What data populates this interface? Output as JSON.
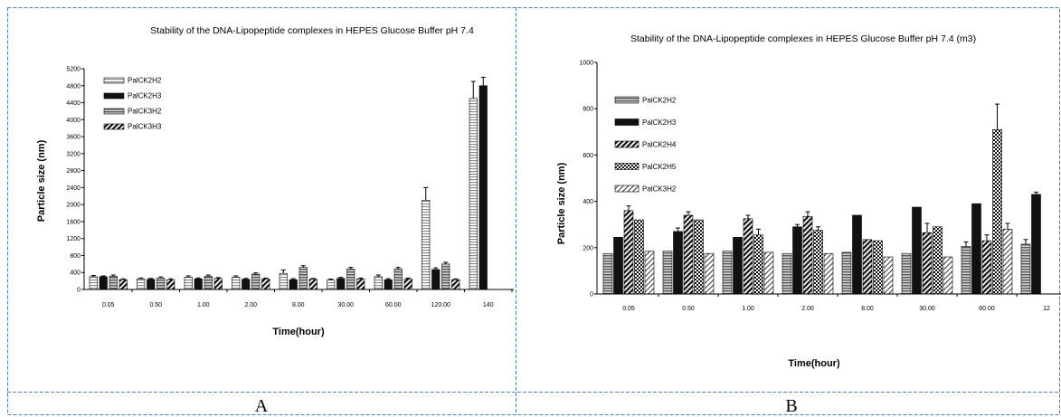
{
  "panel_labels": [
    "A",
    "B"
  ],
  "colors": {
    "border": "#4a7fc4",
    "light_bar": "#e3e3e3",
    "dark_bar": "#111111",
    "mid_bar": "#9a9a9a",
    "error_bar": "#000000"
  },
  "chart_data": [
    {
      "type": "bar",
      "title": "Stability of the DNA-Lipopeptide complexes in HEPES Glucose Buffer pH 7.4",
      "xlabel": "Time(hour)",
      "ylabel": "Particle size (nm)",
      "ylim": [
        0,
        5200
      ],
      "yticks": [
        0,
        400,
        800,
        1200,
        1600,
        2000,
        2400,
        2800,
        3200,
        3600,
        4000,
        4400,
        4800,
        5200
      ],
      "categories": [
        "0.05",
        "0.50",
        "1.00",
        "2.00",
        "8.00",
        "30.00",
        "60.00",
        "120.00",
        "140"
      ],
      "legend_position": "top-left",
      "series": [
        {
          "name": "PalCK2H2",
          "pattern": "hlines-light",
          "values": [
            300,
            250,
            290,
            290,
            380,
            220,
            300,
            2100,
            4500
          ],
          "errors": [
            30,
            20,
            30,
            30,
            80,
            25,
            40,
            300,
            400
          ]
        },
        {
          "name": "PalCK2H3",
          "pattern": "solid-dark",
          "values": [
            300,
            240,
            250,
            240,
            230,
            260,
            230,
            470,
            4800
          ],
          "errors": [
            20,
            20,
            20,
            20,
            25,
            25,
            25,
            40,
            200
          ]
        },
        {
          "name": "PalCK3H2",
          "pattern": "hlines-mid",
          "values": [
            310,
            270,
            310,
            360,
            520,
            480,
            480,
            600,
            0
          ],
          "errors": [
            30,
            25,
            30,
            30,
            40,
            40,
            40,
            40,
            0
          ]
        },
        {
          "name": "PalCK3H3",
          "pattern": "diag-dark",
          "values": [
            230,
            230,
            260,
            250,
            240,
            250,
            250,
            230,
            0
          ],
          "errors": [
            20,
            20,
            20,
            20,
            20,
            20,
            20,
            20,
            0
          ]
        }
      ]
    },
    {
      "type": "bar",
      "title": "Stability of the DNA-Lipopeptide complexes in HEPES Glucose Buffer pH 7.4 (m3)",
      "xlabel": "Time(hour)",
      "ylabel": "Particle size (nm)",
      "ylim": [
        0,
        1000
      ],
      "yticks": [
        0,
        200,
        400,
        600,
        800,
        1000
      ],
      "categories": [
        "0.05",
        "0.50",
        "1.00",
        "2.00",
        "8.00",
        "30.00",
        "60.00",
        "12"
      ],
      "legend_position": "top-left",
      "series": [
        {
          "name": "PalCK2H2",
          "pattern": "hlines-mid",
          "values": [
            175,
            185,
            185,
            175,
            180,
            175,
            205,
            215
          ],
          "errors": [
            0,
            0,
            0,
            0,
            0,
            0,
            20,
            20
          ]
        },
        {
          "name": "PalCK2H3",
          "pattern": "solid-dark",
          "values": [
            245,
            270,
            245,
            290,
            340,
            375,
            390,
            430
          ],
          "errors": [
            0,
            15,
            0,
            10,
            0,
            0,
            0,
            10
          ]
        },
        {
          "name": "PalCK2H4",
          "pattern": "diag-dark",
          "values": [
            360,
            340,
            325,
            335,
            235,
            265,
            230,
            0
          ],
          "errors": [
            20,
            15,
            15,
            20,
            0,
            40,
            25,
            0
          ]
        },
        {
          "name": "PalCK2H5",
          "pattern": "check",
          "values": [
            320,
            320,
            255,
            275,
            230,
            290,
            710,
            0
          ],
          "errors": [
            0,
            0,
            25,
            15,
            0,
            0,
            110,
            0
          ]
        },
        {
          "name": "PalCK3H2",
          "pattern": "diag-light",
          "values": [
            185,
            175,
            180,
            175,
            160,
            160,
            280,
            0
          ],
          "errors": [
            0,
            0,
            0,
            0,
            0,
            0,
            25,
            0
          ]
        }
      ]
    }
  ]
}
